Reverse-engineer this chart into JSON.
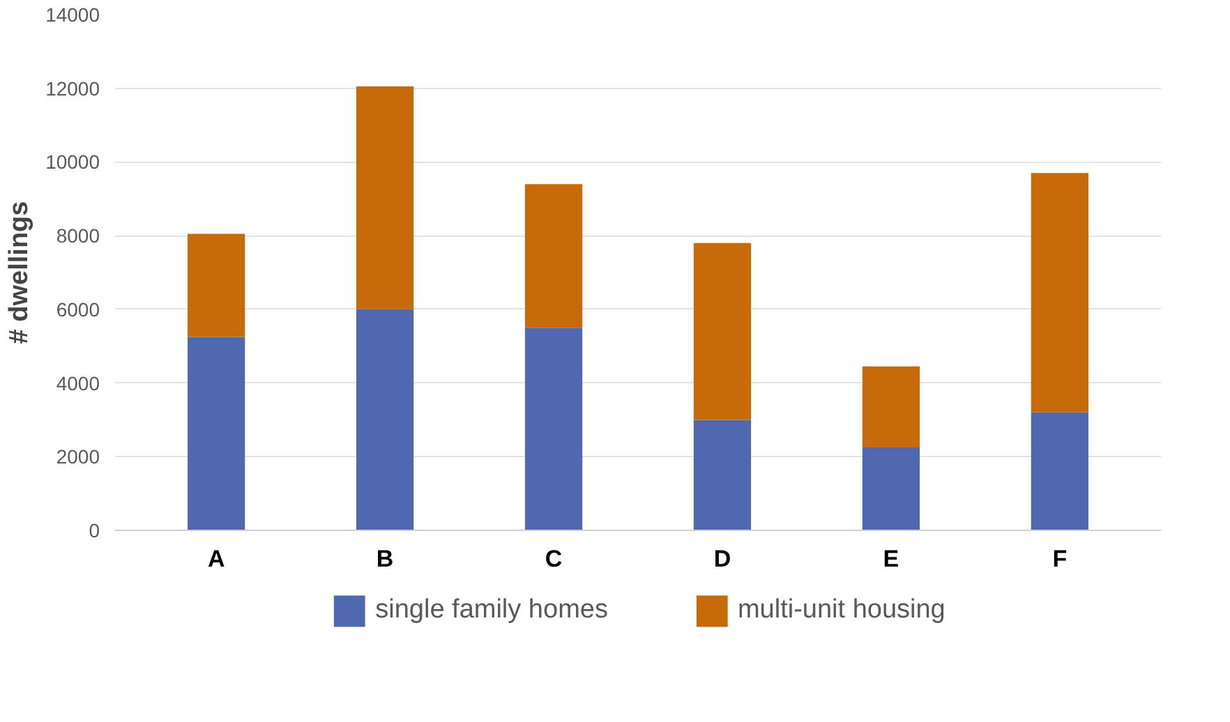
{
  "chart_data": {
    "type": "bar",
    "stacked": true,
    "ylabel": "# dwellings",
    "categories": [
      "A",
      "B",
      "C",
      "D",
      "E",
      "F"
    ],
    "series": [
      {
        "name": "single family homes",
        "color": "#5068b0",
        "values": [
          5250,
          6000,
          5500,
          3000,
          2250,
          3200
        ]
      },
      {
        "name": "multi-unit housing",
        "color": "#c96a0a",
        "values": [
          2800,
          6050,
          3900,
          4800,
          2200,
          6500
        ]
      }
    ],
    "ylim": [
      0,
      14000
    ],
    "yticks": [
      0,
      2000,
      4000,
      6000,
      8000,
      10000,
      12000,
      14000
    ],
    "grid": "y",
    "legend": "bottom"
  }
}
